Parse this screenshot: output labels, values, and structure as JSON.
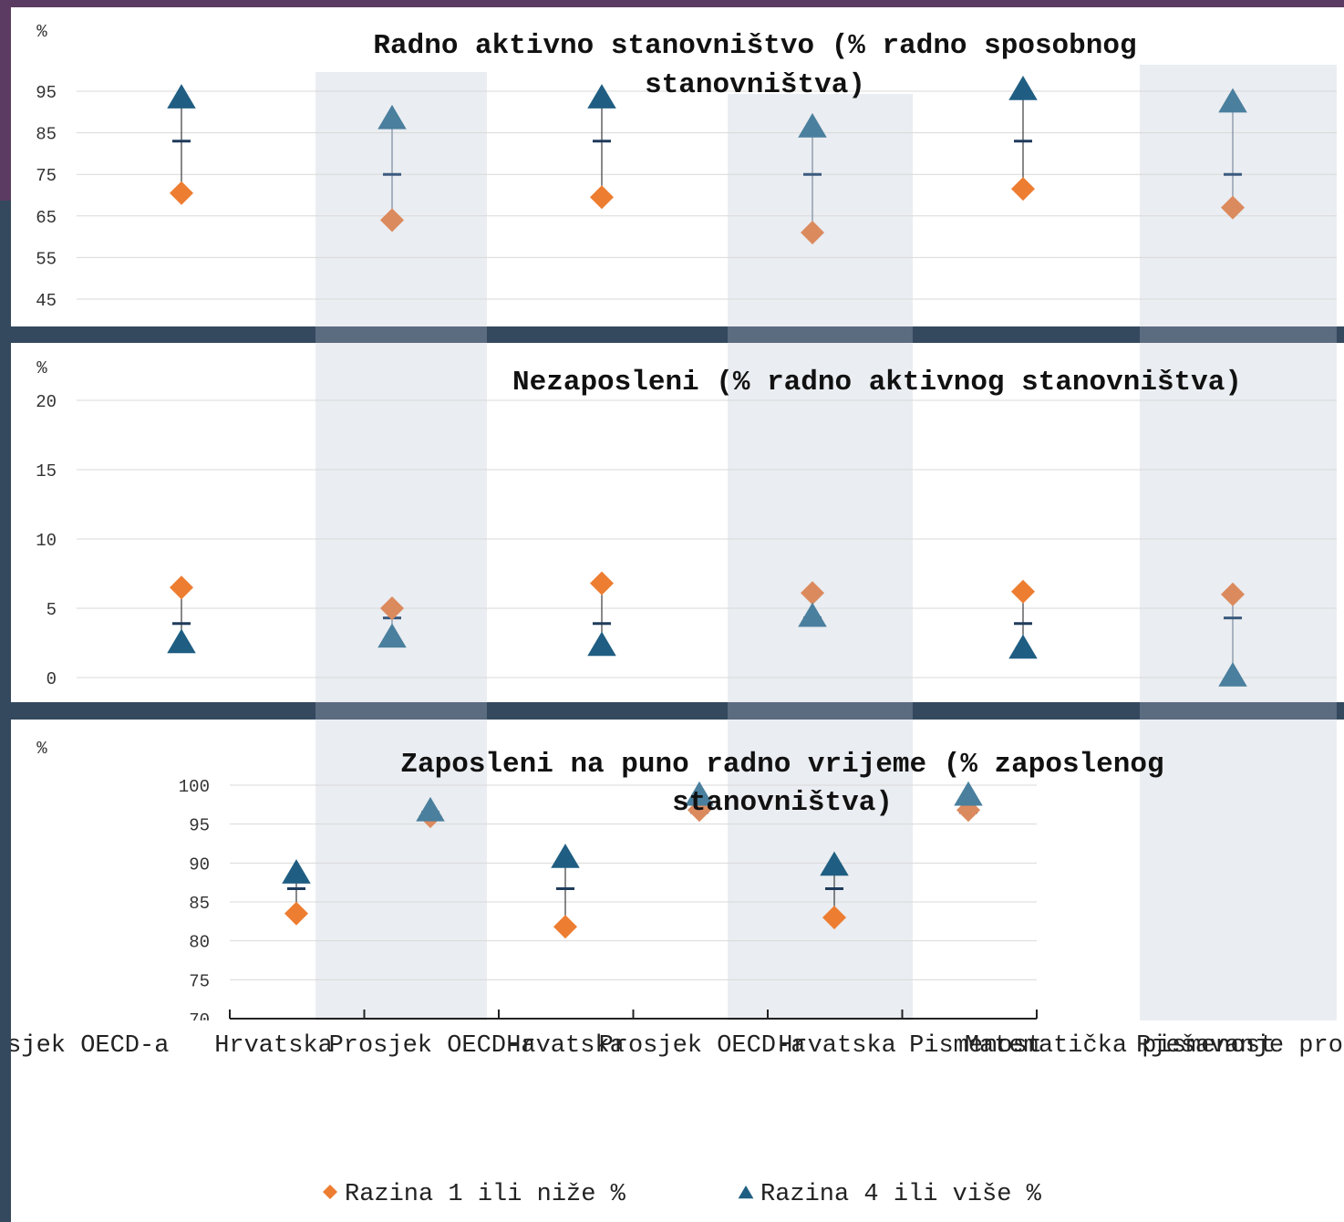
{
  "chart_data": [
    {
      "type": "scatter",
      "title": "Radno aktivno stanovništvo (% radno sposobnog stanovništva)",
      "ylabel": "%",
      "ylim": [
        45,
        95
      ],
      "yticks": [
        45,
        55,
        65,
        75,
        85,
        95
      ],
      "categories": [
        "Prosjek OECD-a",
        "Hrvatska",
        "Prosjek OECD-a",
        "Hrvatska",
        "Prosjek OECD-a",
        "Hrvatska"
      ],
      "series": [
        {
          "name": "Razina 1 ili niže %",
          "values": [
            70.5,
            64,
            69.5,
            61,
            71.5,
            67
          ]
        },
        {
          "name": "Razina 4 ili više %",
          "values": [
            93,
            88,
            93,
            86,
            95,
            92
          ]
        },
        {
          "name": "",
          "values": [
            83,
            75,
            83,
            75,
            83,
            75
          ]
        }
      ]
    },
    {
      "type": "scatter",
      "title": "Nezaposleni (% radno aktivnog stanovništva)",
      "ylabel": "%",
      "ylim": [
        0,
        20
      ],
      "yticks": [
        0,
        5,
        10,
        15,
        20
      ],
      "categories": [
        "Prosjek OECD-a",
        "Hrvatska",
        "Prosjek OECD-a",
        "Hrvatska",
        "Prosjek OECD-a",
        "Hrvatska"
      ],
      "series": [
        {
          "name": "Razina 1 ili niže %",
          "values": [
            6.5,
            5.0,
            6.8,
            6.1,
            6.2,
            6.0
          ]
        },
        {
          "name": "Razina 4 ili više %",
          "values": [
            2.4,
            2.8,
            2.2,
            4.3,
            2.0,
            0.0
          ]
        },
        {
          "name": "",
          "values": [
            3.9,
            4.3,
            3.9,
            4.3,
            3.9,
            4.3
          ]
        }
      ]
    },
    {
      "type": "scatter",
      "title": "Zaposleni na puno radno vrijeme (% zaposlenog stanovništva)",
      "ylabel": "%",
      "ylim": [
        70,
        100
      ],
      "yticks": [
        70,
        75,
        80,
        85,
        90,
        95,
        100
      ],
      "categories": [
        "Prosjek OECD-a",
        "Hrvatska",
        "Prosjek OECD-a",
        "Hrvatska",
        "Prosjek OECD-a",
        "Hrvatska"
      ],
      "series": [
        {
          "name": "Razina 1 ili niže %",
          "values": [
            83.5,
            96,
            81.8,
            96.8,
            83,
            96.8
          ]
        },
        {
          "name": "Razina 4 ili više %",
          "values": [
            88.5,
            96.5,
            90.5,
            98.5,
            89.5,
            98.5
          ]
        },
        {
          "name": "",
          "values": [
            86.7,
            96.5,
            86.7,
            96.5,
            86.7,
            96.5
          ]
        }
      ]
    }
  ],
  "xaxis_labels": [
    "Prosjek OECD-a",
    "Hrvatska",
    "Prosjek OECD-a",
    "Hrvatska",
    "Prosjek OECD-a",
    "Hrvatska"
  ],
  "group_labels": [
    "Pismenost",
    "Matematička pismenost",
    "Rješavanje problema"
  ],
  "legend": {
    "position": "bottom",
    "items": [
      {
        "label": "Razina 1 ili niže %",
        "marker": "diamond",
        "color": "#ed7d31"
      },
      {
        "label": "Razina 4 ili više %",
        "marker": "triangle",
        "color": "#1f5e82"
      }
    ]
  },
  "colors": {
    "background": "#34495e",
    "panel": "#ffffff",
    "band": "#eaedf1",
    "band_on_dark": "#5b6b80",
    "orange": "#ed7d31",
    "orange_light": "#db8a5e",
    "blue": "#1f5e82",
    "blue_light": "#4a7f9e",
    "avg_dark": "#1f3b5c",
    "avg_light": "#3b5a7e",
    "grid": "#d9d9d9"
  }
}
